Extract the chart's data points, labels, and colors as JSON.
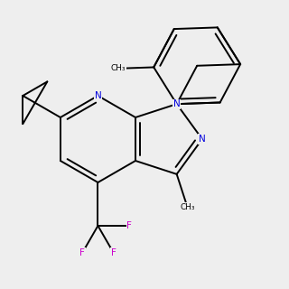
{
  "bg": "#eeeeee",
  "bc": "#000000",
  "nc": "#0000dd",
  "fc": "#cc00cc",
  "lw": 1.4,
  "dbo": 0.055,
  "fs": 7.5
}
